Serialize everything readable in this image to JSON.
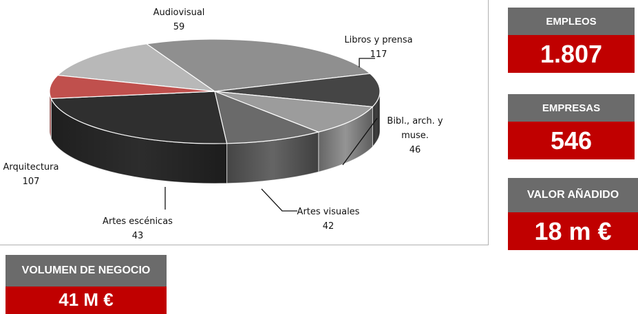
{
  "chart_data": {
    "type": "pie",
    "title": "",
    "slices": [
      {
        "label": "Audiovisual",
        "value": 59,
        "color": "#b8b8b8"
      },
      {
        "label": "Libros y prensa",
        "value": 117,
        "color": "#8f8f8f"
      },
      {
        "label": "Bibl., arch. y muse.",
        "value": 46,
        "color": "#454545"
      },
      {
        "label": "Artes visuales",
        "value": 42,
        "color": "#9c9c9c"
      },
      {
        "label": "Artes escénicas",
        "value": 43,
        "color": "#6a6a6a"
      },
      {
        "label": "Arquitectura",
        "value": 107,
        "color": "#2f2f2f"
      },
      {
        "label": "",
        "value": 32,
        "color": "#c0504d"
      }
    ]
  },
  "kpis": {
    "empleos": {
      "label": "EMPLEOS",
      "value": "1.807"
    },
    "empresas": {
      "label": "EMPRESAS",
      "value": "546"
    },
    "valor": {
      "label": "VALOR AÑADIDO",
      "value": "18 m €"
    },
    "volumen": {
      "label": "VOLUMEN DE NEGOCIO",
      "value": "41 M €"
    }
  }
}
